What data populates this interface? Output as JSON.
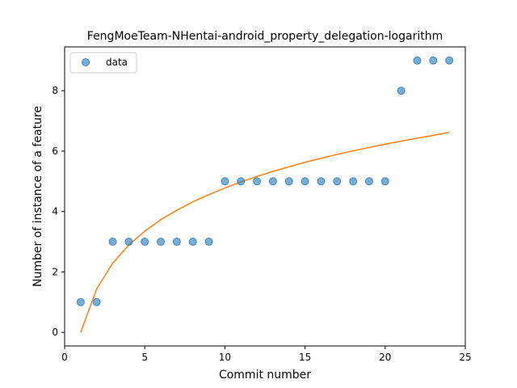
{
  "chart_data": {
    "type": "scatter",
    "title": "FengMoeTeam-NHentai-android_property_delegation-logarithm",
    "xlabel": "Commit number",
    "ylabel": "Number of instance of a feature",
    "xlim": [
      0,
      25
    ],
    "ylim": [
      -0.45,
      9.45
    ],
    "xticks": [
      0,
      5,
      10,
      15,
      20,
      25
    ],
    "yticks": [
      0,
      2,
      4,
      6,
      8
    ],
    "grid": false,
    "legend": {
      "placement": "top-left",
      "entries": [
        "data"
      ]
    },
    "series": [
      {
        "name": "data",
        "kind": "scatter",
        "color": "#1f77b4",
        "x": [
          1,
          2,
          3,
          4,
          5,
          6,
          7,
          8,
          9,
          10,
          11,
          12,
          13,
          14,
          15,
          16,
          17,
          18,
          19,
          20,
          21,
          22,
          23,
          24
        ],
        "y": [
          1,
          1,
          3,
          3,
          3,
          3,
          3,
          3,
          3,
          5,
          5,
          5,
          5,
          5,
          5,
          5,
          5,
          5,
          5,
          5,
          8,
          9,
          9,
          9
        ]
      },
      {
        "kind": "line",
        "color": "#ff7f0e",
        "x": [
          1,
          2,
          3,
          4,
          5,
          6,
          7,
          8,
          9,
          10,
          11,
          12,
          13,
          14,
          15,
          16,
          17,
          18,
          19,
          20,
          21,
          22,
          23,
          24
        ],
        "y": [
          0.0,
          1.44,
          2.29,
          2.89,
          3.35,
          3.73,
          4.04,
          4.32,
          4.56,
          4.78,
          4.98,
          5.16,
          5.33,
          5.48,
          5.63,
          5.76,
          5.89,
          6.01,
          6.12,
          6.23,
          6.33,
          6.43,
          6.52,
          6.62
        ]
      }
    ]
  }
}
